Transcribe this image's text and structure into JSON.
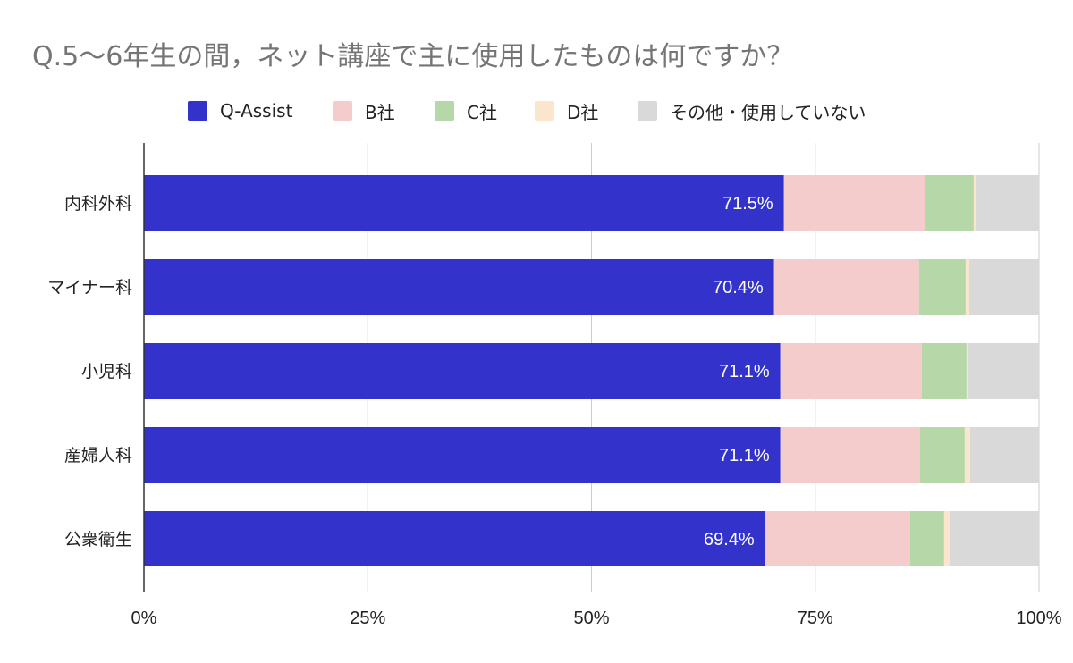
{
  "chart_data": {
    "type": "bar",
    "orientation": "horizontal",
    "stacked": true,
    "title": "Q.5〜6年生の間，ネット講座で主に使用したものは何ですか？",
    "categories": [
      "内科外科",
      "マイナー科",
      "小児科",
      "産婦人科",
      "公衆衛生"
    ],
    "series": [
      {
        "name": "Q-Assist",
        "color": "#3333cc",
        "values": [
          71.5,
          70.4,
          71.1,
          71.1,
          69.4
        ],
        "labels": [
          "71.5%",
          "70.4%",
          "71.1%",
          "71.1%",
          "69.4%"
        ]
      },
      {
        "name": "B社",
        "color": "#f4cccc",
        "values": [
          15.8,
          16.2,
          15.8,
          15.6,
          16.2
        ]
      },
      {
        "name": "C社",
        "color": "#b6d7a8",
        "values": [
          5.4,
          5.2,
          5.0,
          5.0,
          3.8
        ]
      },
      {
        "name": "D社",
        "color": "#fce5cd",
        "values": [
          0.2,
          0.4,
          0.2,
          0.6,
          0.6
        ]
      },
      {
        "name": "その他・使用していない",
        "color": "#d9d9d9",
        "values": [
          7.1,
          7.8,
          7.9,
          7.7,
          10.0
        ]
      }
    ],
    "xlim": [
      0,
      100
    ],
    "ticks": [
      0,
      25,
      50,
      75,
      100
    ],
    "tick_labels": [
      "0%",
      "25%",
      "50%",
      "75%",
      "100%"
    ],
    "grid": true,
    "legend_position": "top-center"
  }
}
